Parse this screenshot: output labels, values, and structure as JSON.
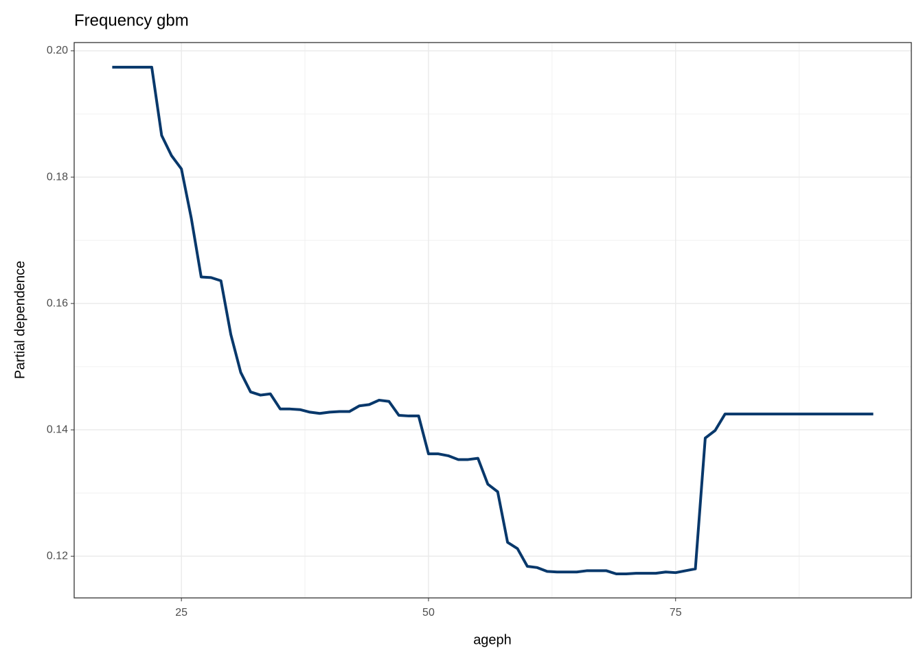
{
  "chart_data": {
    "type": "line",
    "title": "Frequency gbm",
    "x_label": "ageph",
    "y_label": "Partial dependence",
    "x": [
      18,
      19,
      20,
      21,
      22,
      23,
      24,
      25,
      26,
      27,
      28,
      29,
      30,
      31,
      32,
      33,
      34,
      35,
      36,
      37,
      38,
      39,
      40,
      41,
      42,
      43,
      44,
      45,
      46,
      47,
      48,
      49,
      50,
      51,
      52,
      53,
      54,
      55,
      56,
      57,
      58,
      59,
      60,
      61,
      62,
      63,
      64,
      65,
      66,
      67,
      68,
      69,
      70,
      71,
      72,
      73,
      74,
      75,
      76,
      77,
      78,
      79,
      80,
      81,
      82,
      83,
      84,
      85,
      86,
      87,
      88,
      89,
      90,
      91,
      92,
      93,
      94,
      95
    ],
    "series": [
      {
        "color": "#08386b",
        "values": [
          0.1974,
          0.1974,
          0.1974,
          0.1974,
          0.1974,
          0.1866,
          0.1834,
          0.1813,
          0.1735,
          0.1642,
          0.1641,
          0.1636,
          0.1551,
          0.1491,
          0.146,
          0.1455,
          0.1457,
          0.1433,
          0.1433,
          0.1432,
          0.1428,
          0.1426,
          0.1428,
          0.1429,
          0.1429,
          0.1438,
          0.144,
          0.1447,
          0.1445,
          0.1423,
          0.1422,
          0.1422,
          0.1362,
          0.1362,
          0.1359,
          0.1353,
          0.1353,
          0.1355,
          0.1314,
          0.1302,
          0.1222,
          0.1212,
          0.1184,
          0.1182,
          0.1176,
          0.1175,
          0.1175,
          0.1175,
          0.1177,
          0.1177,
          0.1177,
          0.1172,
          0.1172,
          0.1173,
          0.1173,
          0.1173,
          0.1175,
          0.1174,
          0.1177,
          0.118,
          0.1387,
          0.1399,
          0.1425,
          0.1425,
          0.1425,
          0.1425,
          0.1425,
          0.1425,
          0.1425,
          0.1425,
          0.1425,
          0.1425,
          0.1425,
          0.1425,
          0.1425,
          0.1425,
          0.1425,
          0.1425
        ]
      }
    ],
    "xlim": [
      14.15,
      98.85
    ],
    "ylim": [
      0.1134,
      0.2013
    ],
    "xticks": [
      25,
      50,
      75
    ],
    "yticks": [
      {
        "value": 0.12,
        "label": "0.12"
      },
      {
        "value": 0.14,
        "label": "0.14"
      },
      {
        "value": 0.16,
        "label": "0.16"
      },
      {
        "value": 0.18,
        "label": "0.18"
      },
      {
        "value": 0.2,
        "label": "0.20"
      }
    ],
    "x_minor_ticks": [
      12.5,
      37.5,
      62.5,
      87.5
    ],
    "y_minor_ticks": [
      0.11,
      0.13,
      0.15,
      0.17,
      0.19
    ],
    "grid": true
  }
}
